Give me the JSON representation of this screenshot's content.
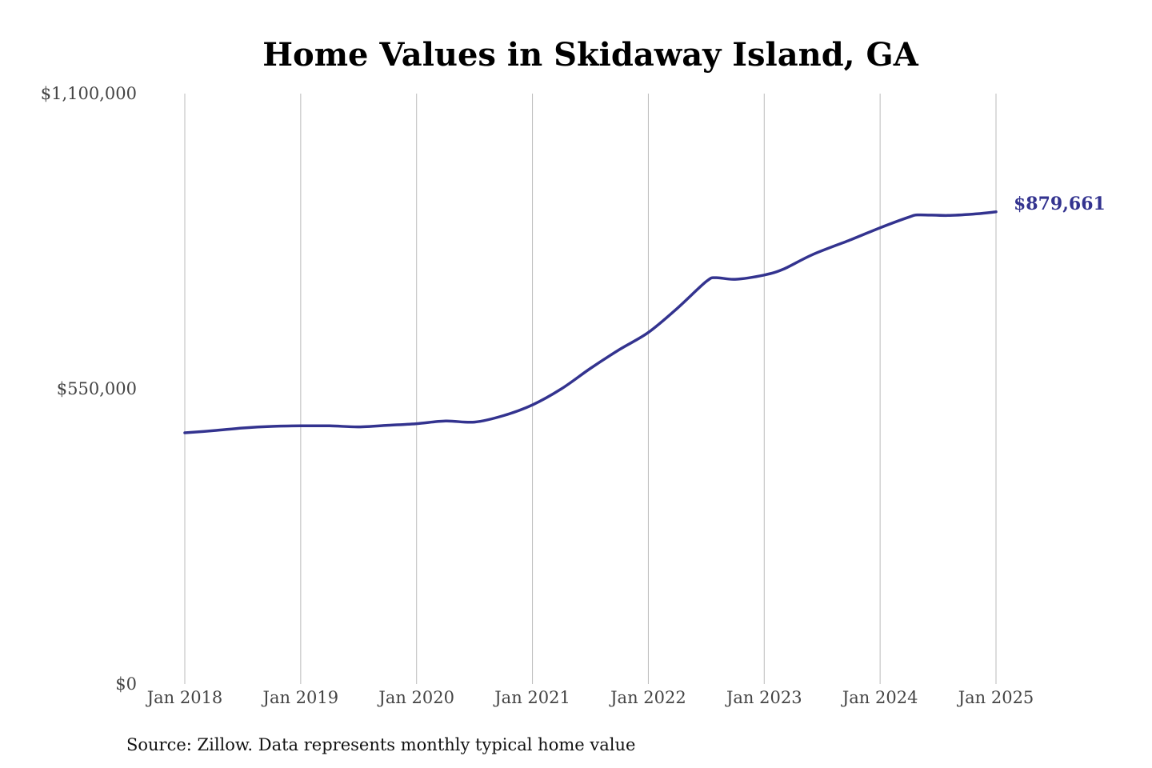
{
  "chart_data": {
    "type": "line",
    "title": "Home Values in Skidaway Island, GA",
    "xlabel": "",
    "ylabel": "",
    "ylim": [
      0,
      1100000
    ],
    "xlim": [
      "2018-01",
      "2025-01"
    ],
    "grid": {
      "vertical": true,
      "horizontal": false
    },
    "yticks": [
      {
        "value": 0,
        "label": "$0"
      },
      {
        "value": 550000,
        "label": "$550,000"
      },
      {
        "value": 1100000,
        "label": "$1,100,000"
      }
    ],
    "xticks": [
      {
        "date": "2018-01",
        "label": "Jan 2018"
      },
      {
        "date": "2019-01",
        "label": "Jan 2019"
      },
      {
        "date": "2020-01",
        "label": "Jan 2020"
      },
      {
        "date": "2021-01",
        "label": "Jan 2021"
      },
      {
        "date": "2022-01",
        "label": "Jan 2022"
      },
      {
        "date": "2023-01",
        "label": "Jan 2023"
      },
      {
        "date": "2024-01",
        "label": "Jan 2024"
      },
      {
        "date": "2025-01",
        "label": "Jan 2025"
      }
    ],
    "series": [
      {
        "color": "#33338f",
        "points": [
          {
            "x": "2018-01",
            "y": 468000
          },
          {
            "x": "2018-04",
            "y": 472000
          },
          {
            "x": "2018-07",
            "y": 477000
          },
          {
            "x": "2018-10",
            "y": 480000
          },
          {
            "x": "2019-01",
            "y": 481000
          },
          {
            "x": "2019-04",
            "y": 481000
          },
          {
            "x": "2019-07",
            "y": 479000
          },
          {
            "x": "2019-10",
            "y": 482000
          },
          {
            "x": "2020-01",
            "y": 485000
          },
          {
            "x": "2020-04",
            "y": 490000
          },
          {
            "x": "2020-07",
            "y": 488000
          },
          {
            "x": "2020-10",
            "y": 500000
          },
          {
            "x": "2021-01",
            "y": 520000
          },
          {
            "x": "2021-04",
            "y": 550000
          },
          {
            "x": "2021-07",
            "y": 588000
          },
          {
            "x": "2021-10",
            "y": 623000
          },
          {
            "x": "2022-01",
            "y": 655000
          },
          {
            "x": "2022-04",
            "y": 700000
          },
          {
            "x": "2022-07",
            "y": 750000
          },
          {
            "x": "2022-08",
            "y": 757000
          },
          {
            "x": "2022-10",
            "y": 754000
          },
          {
            "x": "2023-01",
            "y": 762000
          },
          {
            "x": "2023-03",
            "y": 773000
          },
          {
            "x": "2023-06",
            "y": 800000
          },
          {
            "x": "2023-10",
            "y": 828000
          },
          {
            "x": "2024-01",
            "y": 850000
          },
          {
            "x": "2024-04",
            "y": 870000
          },
          {
            "x": "2024-05",
            "y": 874000
          },
          {
            "x": "2024-08",
            "y": 873000
          },
          {
            "x": "2024-11",
            "y": 876000
          },
          {
            "x": "2025-01",
            "y": 879661
          }
        ]
      }
    ],
    "end_label": "$879,661",
    "source": "Source: Zillow. Data represents monthly typical home value"
  }
}
